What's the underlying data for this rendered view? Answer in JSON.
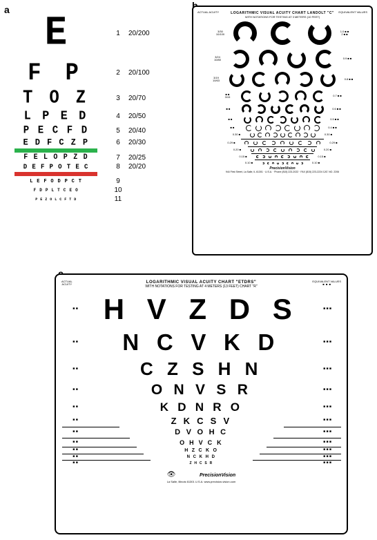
{
  "labels": {
    "a": "a",
    "b": "b",
    "c": "c"
  },
  "colors": {
    "green_bar": "#2bb24c",
    "red_bar": "#d9332e",
    "black": "#000000",
    "white": "#ffffff"
  },
  "snellen": {
    "rows": [
      {
        "letters": "E",
        "num": "1",
        "acuity": "20/200",
        "size": 54,
        "spacing": "0em"
      },
      {
        "letters": "F P",
        "num": "2",
        "acuity": "20/100",
        "size": 32,
        "spacing": "0.25em"
      },
      {
        "letters": "T O Z",
        "num": "3",
        "acuity": "20/70",
        "size": 24,
        "spacing": "0.2em"
      },
      {
        "letters": "L P E D",
        "num": "4",
        "acuity": "20/50",
        "size": 17,
        "spacing": "0.18em"
      },
      {
        "letters": "P E C F D",
        "num": "5",
        "acuity": "20/40",
        "size": 14,
        "spacing": "0.15em"
      },
      {
        "letters": "E D F C Z P",
        "num": "6",
        "acuity": "20/30",
        "size": 12,
        "spacing": "0.12em",
        "bar_after": "green"
      },
      {
        "letters": "F E L O P Z D",
        "num": "7",
        "acuity": "20/25",
        "size": 10,
        "spacing": "0.12em"
      },
      {
        "letters": "D E F P O T E C",
        "num": "8",
        "acuity": "20/20",
        "size": 9,
        "spacing": "0.1em",
        "bar_after": "red"
      },
      {
        "letters": "L E F O D P C T",
        "num": "9",
        "acuity": "",
        "size": 7,
        "spacing": "0.12em"
      },
      {
        "letters": "F D P L T C E O",
        "num": "10",
        "acuity": "",
        "size": 6,
        "spacing": "0.12em"
      },
      {
        "letters": "P E Z O L C F T D",
        "num": "11",
        "acuity": "",
        "size": 5,
        "spacing": "0.1em"
      }
    ]
  },
  "landolt": {
    "title": "LOGARITHMIC VISUAL ACUITY CHART LANDOLT \"C\"",
    "subtitle": "WITH NOTATIONS FOR TESTING AT 3 METERS (10 FEET)",
    "corner_tl": "ACTUAL ACUITY",
    "corner_tr": "EQUIVALENT VALUES",
    "footer": "PrecisionVision",
    "footer_sub": "944 First Street, La Salle, IL 61301 · U.S.A. · Phone (815) 223-2022 · FAX (815) 223-2224     CAT. NO. 2206",
    "rows": [
      {
        "size": 34,
        "gap": 20,
        "count": 3,
        "dirs": [
          "down",
          "right",
          "up"
        ],
        "left": "3/30\n10/100",
        "right": "1.0 ■ ■\n2 ■ ■"
      },
      {
        "size": 27,
        "gap": 14,
        "count": 4,
        "dirs": [
          "left",
          "down",
          "up",
          "right"
        ],
        "left": "3/24\n10/80",
        "right": "0.9 ■ ■"
      },
      {
        "size": 22,
        "gap": 11,
        "count": 5,
        "dirs": [
          "up",
          "right",
          "down",
          "left",
          "up"
        ],
        "left": "3/19\n10/63",
        "right": "0.8 ■ ■"
      },
      {
        "size": 17,
        "gap": 9,
        "count": 5,
        "dirs": [
          "right",
          "up",
          "left",
          "down",
          "right"
        ],
        "left": "■ ■\n3/15",
        "right": "0.7 ■ ■"
      },
      {
        "size": 14,
        "gap": 7,
        "count": 6,
        "dirs": [
          "down",
          "left",
          "up",
          "right",
          "down",
          "up"
        ],
        "left": "■ ■",
        "right": "0.6 ■ ■"
      },
      {
        "size": 11,
        "gap": 6,
        "count": 7,
        "dirs": [
          "up",
          "down",
          "right",
          "left",
          "up",
          "down",
          "right"
        ],
        "left": "■ ■",
        "right": "0.5 ■ ■"
      },
      {
        "size": 9,
        "gap": 5,
        "count": 8,
        "dirs": [
          "right",
          "up",
          "down",
          "left",
          "right",
          "up",
          "down",
          "left"
        ],
        "left": "■ ■",
        "right": "0.4 ■ ■"
      },
      {
        "size": 7,
        "gap": 4,
        "count": 9,
        "dirs": [
          "up",
          "right",
          "down",
          "left",
          "up",
          "right",
          "down",
          "left",
          "up"
        ],
        "left": "0.30 ■",
        "right": "0.30 ■",
        "hr_after": 120
      },
      {
        "size": 6,
        "gap": 7,
        "count": 9,
        "dirs": [
          "d",
          "u",
          "r",
          "l",
          "d",
          "u",
          "r",
          "l",
          "d"
        ],
        "left": "0.29 ■",
        "right": "0.29 ■",
        "hr_after": 100
      },
      {
        "size": 5,
        "gap": 6,
        "count": 9,
        "dirs": [
          "u",
          "d",
          "l",
          "r",
          "u",
          "d",
          "l",
          "r",
          "u"
        ],
        "left": "0.20 ■",
        "right": "0.20 ■",
        "hr_after": 90
      },
      {
        "size": 4,
        "gap": 5,
        "count": 9,
        "dirs": [
          "r",
          "l",
          "u",
          "d",
          "r",
          "l",
          "u",
          "d",
          "r"
        ],
        "left": "0.15 ■",
        "right": "0.15 ■",
        "hr_after": 80
      },
      {
        "size": 3,
        "gap": 4,
        "count": 9,
        "dirs": [
          "l",
          "r",
          "d",
          "u",
          "l",
          "r",
          "d",
          "u",
          "l"
        ],
        "left": "0.10 ■",
        "right": "0.10 ■"
      }
    ]
  },
  "etdrs": {
    "title": "LOGARITHMIC VISUAL ACUITY CHART \"ETDRS\"",
    "subtitle": "WITH NOTATIONS FOR TESTING AT 4 METERS (13 FEET)  CHART \"R\"",
    "corner_tl": "ACTUAL\nACUITY",
    "corner_tr": "EQUIVALENT VALUES\n■  ■  ■",
    "footer": "PrecisionVision",
    "footer_sub": "La Salle, Illinois 61301 U.S.A.  www.precision-vision.com",
    "rows": [
      {
        "letters": "H V Z D S",
        "size": 42,
        "spacing": "0.25em",
        "left": "■ ■",
        "right": "■ ■ ■"
      },
      {
        "letters": "N C V K D",
        "size": 33,
        "spacing": "0.25em",
        "left": "■ ■",
        "right": "■ ■ ■"
      },
      {
        "letters": "C Z S H N",
        "size": 26,
        "spacing": "0.25em",
        "left": "■ ■",
        "right": "■ ■ ■"
      },
      {
        "letters": "O N V S R",
        "size": 21,
        "spacing": "0.25em",
        "left": "■ ■",
        "right": "■ ■ ■"
      },
      {
        "letters": "K D N R O",
        "size": 17,
        "spacing": "0.25em",
        "left": "■ ■",
        "right": "■ ■ ■"
      },
      {
        "letters": "Z K C S V",
        "size": 13,
        "spacing": "0.25em",
        "left": "■ ■",
        "right": "■ ■ ■",
        "hr_after": 230
      },
      {
        "letters": "D V O H C",
        "size": 11,
        "spacing": "0.25em",
        "left": "■ ■",
        "right": "■ ■ ■",
        "hr_after": 200
      },
      {
        "letters": "O H V C K",
        "size": 9,
        "spacing": "0.25em",
        "left": "■ ■",
        "right": "■ ■ ■",
        "hr_after": 180
      },
      {
        "letters": "H Z C K O",
        "size": 7,
        "spacing": "0.25em",
        "left": "■ ■",
        "right": "■ ■ ■",
        "hr_after": 160
      },
      {
        "letters": "N C K H D",
        "size": 6,
        "spacing": "0.25em",
        "left": "■ ■",
        "right": "■ ■ ■",
        "hr_after": 140
      },
      {
        "letters": "Z H C S R",
        "size": 5,
        "spacing": "0.25em",
        "left": "■ ■",
        "right": "■ ■ ■"
      }
    ]
  }
}
